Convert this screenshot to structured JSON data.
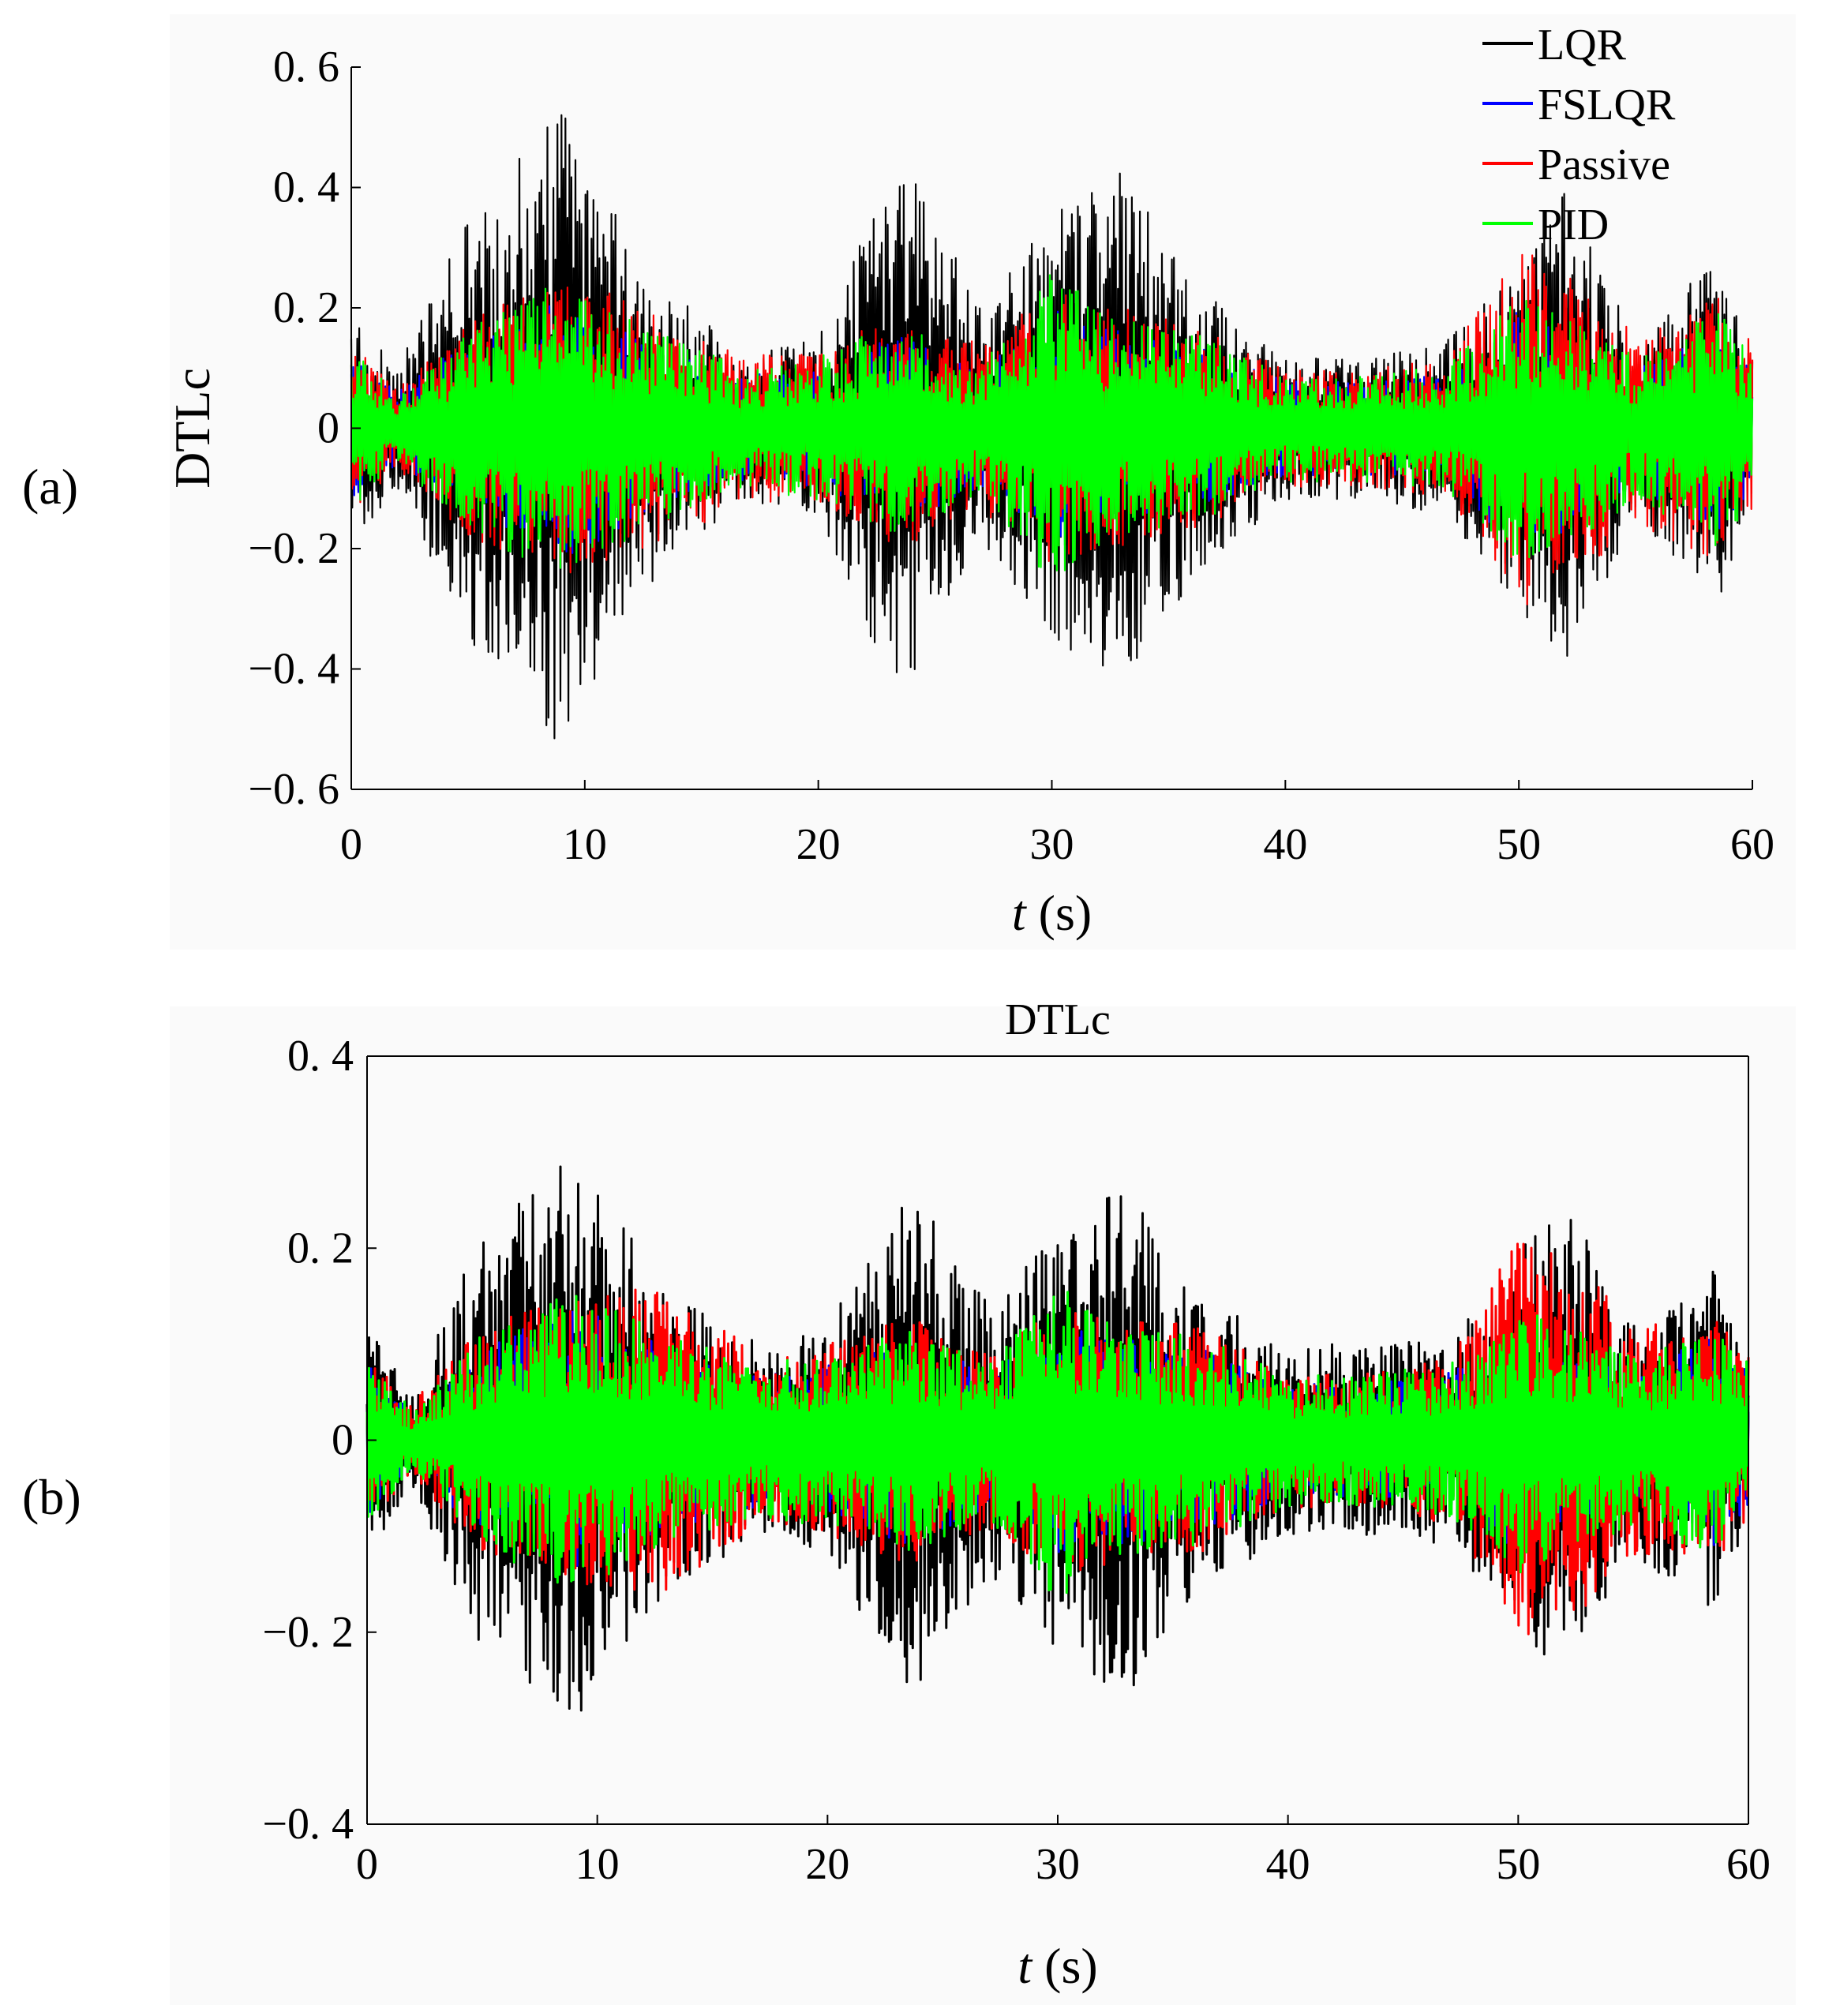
{
  "figure": {
    "panels": [
      {
        "label": "(a)"
      },
      {
        "label": "(b)"
      }
    ]
  },
  "legend": {
    "entries": [
      {
        "name": "LQR",
        "color": "#000000"
      },
      {
        "name": "FSLQR",
        "color": "#0000ff"
      },
      {
        "name": "Passive",
        "color": "#ff0000"
      },
      {
        "name": "PID",
        "color": "#00ff00"
      }
    ]
  },
  "chart_data": [
    {
      "type": "line",
      "panel": "(a)",
      "title": "",
      "xlabel_italic": "t",
      "xlabel_unit": " (s)",
      "ylabel": "DTLc",
      "xlim": [
        0,
        60
      ],
      "ylim": [
        -0.6,
        0.6
      ],
      "xticks": [
        0,
        10,
        20,
        30,
        40,
        50,
        60
      ],
      "xtick_labels": [
        "0",
        "10",
        "20",
        "30",
        "40",
        "50",
        "60"
      ],
      "yticks": [
        0.6,
        0.4,
        0.2,
        0,
        -0.2,
        -0.4,
        -0.6
      ],
      "ytick_labels": [
        "0. 6",
        "0. 4",
        "0. 2",
        "0",
        "−0. 2",
        "−0. 4",
        "−0. 6"
      ],
      "legend_position": "top-right",
      "series": [
        {
          "name": "LQR",
          "color": "#000000",
          "envelope_t": [
            0,
            2,
            5,
            9,
            13,
            17,
            20,
            23.5,
            27,
            30,
            33,
            36,
            40,
            44,
            47,
            50,
            52,
            55,
            58.5,
            60
          ],
          "envelope_amp": [
            0.2,
            0.1,
            0.35,
            0.53,
            0.25,
            0.12,
            0.15,
            0.46,
            0.2,
            0.35,
            0.45,
            0.25,
            0.12,
            0.12,
            0.15,
            0.3,
            0.4,
            0.15,
            0.3,
            0.12
          ]
        },
        {
          "name": "FSLQR",
          "color": "#0000ff",
          "envelope_t": [
            0,
            2,
            5,
            9,
            13,
            17,
            20,
            23.5,
            27,
            30,
            33,
            36,
            40,
            44,
            47,
            50,
            52,
            55,
            58.5,
            60
          ],
          "envelope_amp": [
            0.12,
            0.06,
            0.15,
            0.22,
            0.14,
            0.09,
            0.1,
            0.16,
            0.1,
            0.2,
            0.16,
            0.14,
            0.08,
            0.08,
            0.1,
            0.2,
            0.18,
            0.1,
            0.18,
            0.1
          ]
        },
        {
          "name": "Passive",
          "color": "#ff0000",
          "envelope_t": [
            0,
            2,
            5,
            9,
            13,
            17,
            20,
            23.5,
            27,
            30,
            33,
            36,
            40,
            44,
            47,
            50,
            52,
            55,
            58.5,
            60
          ],
          "envelope_amp": [
            0.14,
            0.07,
            0.18,
            0.25,
            0.2,
            0.12,
            0.13,
            0.2,
            0.14,
            0.23,
            0.2,
            0.17,
            0.1,
            0.1,
            0.12,
            0.3,
            0.27,
            0.16,
            0.22,
            0.14
          ]
        },
        {
          "name": "PID",
          "color": "#00ff00",
          "envelope_t": [
            0,
            2,
            5,
            9,
            13,
            17,
            20,
            23.5,
            27,
            30,
            33,
            36,
            40,
            44,
            47,
            50,
            52,
            55,
            58.5,
            60
          ],
          "envelope_amp": [
            0.14,
            0.06,
            0.17,
            0.25,
            0.16,
            0.1,
            0.12,
            0.18,
            0.11,
            0.26,
            0.18,
            0.16,
            0.09,
            0.09,
            0.11,
            0.22,
            0.2,
            0.12,
            0.2,
            0.12
          ]
        }
      ]
    },
    {
      "type": "line",
      "panel": "(b)",
      "title": "DTLc",
      "xlabel_italic": "t",
      "xlabel_unit": " (s)",
      "ylabel": "",
      "xlim": [
        0,
        60
      ],
      "ylim": [
        -0.4,
        0.4
      ],
      "xticks": [
        0,
        10,
        20,
        30,
        40,
        50,
        60
      ],
      "xtick_labels": [
        "0",
        "10",
        "20",
        "30",
        "40",
        "50",
        "60"
      ],
      "yticks": [
        0.4,
        0.2,
        0,
        -0.2,
        -0.4
      ],
      "ytick_labels": [
        "0. 4",
        "0. 2",
        "0",
        "−0. 2",
        "−0. 4"
      ],
      "legend_position": "none",
      "series": [
        {
          "name": "LQR",
          "color": "#000000",
          "envelope_t": [
            0,
            2,
            5,
            9,
            13,
            17,
            20,
            23.5,
            27,
            30,
            33,
            36,
            40,
            44,
            47,
            50,
            52,
            55,
            58.5,
            60
          ],
          "envelope_amp": [
            0.12,
            0.05,
            0.22,
            0.3,
            0.16,
            0.1,
            0.12,
            0.27,
            0.14,
            0.22,
            0.27,
            0.16,
            0.1,
            0.1,
            0.11,
            0.2,
            0.25,
            0.12,
            0.18,
            0.08
          ]
        },
        {
          "name": "FSLQR",
          "color": "#0000ff",
          "envelope_t": [
            0,
            2,
            5,
            9,
            13,
            17,
            20,
            23.5,
            27,
            30,
            33,
            36,
            40,
            44,
            47,
            50,
            52,
            55,
            58.5,
            60
          ],
          "envelope_amp": [
            0.08,
            0.03,
            0.1,
            0.14,
            0.1,
            0.07,
            0.08,
            0.11,
            0.07,
            0.12,
            0.11,
            0.1,
            0.06,
            0.06,
            0.07,
            0.12,
            0.1,
            0.07,
            0.11,
            0.07
          ]
        },
        {
          "name": "Passive",
          "color": "#ff0000",
          "envelope_t": [
            0,
            2,
            5,
            9,
            13,
            17,
            20,
            23.5,
            27,
            30,
            33,
            36,
            40,
            44,
            47,
            50,
            52,
            55,
            58.5,
            60
          ],
          "envelope_amp": [
            0.09,
            0.04,
            0.12,
            0.15,
            0.16,
            0.09,
            0.1,
            0.13,
            0.09,
            0.14,
            0.13,
            0.12,
            0.07,
            0.07,
            0.09,
            0.21,
            0.2,
            0.12,
            0.13,
            0.09
          ]
        },
        {
          "name": "PID",
          "color": "#00ff00",
          "envelope_t": [
            0,
            2,
            5,
            9,
            13,
            17,
            20,
            23.5,
            27,
            30,
            33,
            36,
            40,
            44,
            47,
            50,
            52,
            55,
            58.5,
            60
          ],
          "envelope_amp": [
            0.09,
            0.03,
            0.11,
            0.16,
            0.11,
            0.08,
            0.09,
            0.12,
            0.08,
            0.17,
            0.12,
            0.11,
            0.07,
            0.07,
            0.08,
            0.14,
            0.12,
            0.09,
            0.12,
            0.08
          ]
        }
      ]
    }
  ]
}
